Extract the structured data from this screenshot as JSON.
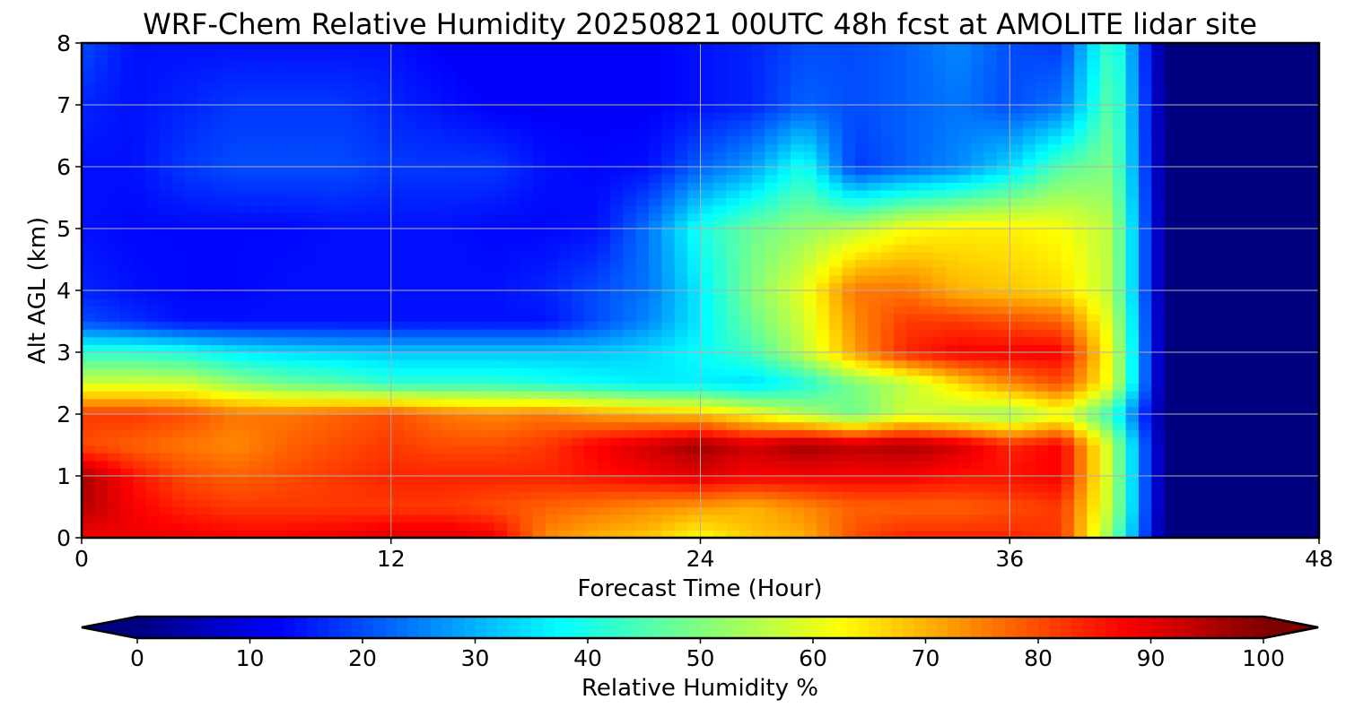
{
  "chart_data": {
    "type": "heatmap",
    "title": "WRF-Chem Relative Humidity 20250821 00UTC 48h fcst at AMOLITE lidar site",
    "xlabel": "Forecast Time (Hour)",
    "ylabel": "Alt AGL (km)",
    "xlim": [
      0,
      48
    ],
    "ylim": [
      0,
      8
    ],
    "xticks": [
      0,
      12,
      24,
      36,
      48
    ],
    "yticks": [
      0,
      1,
      2,
      3,
      4,
      5,
      6,
      7,
      8
    ],
    "grid": true,
    "colorbar": {
      "label": "Relative Humidity %",
      "ticks": [
        0,
        10,
        20,
        30,
        40,
        50,
        60,
        70,
        80,
        90,
        100
      ],
      "range": [
        0,
        100
      ],
      "colormap": "jet",
      "extend": "both",
      "orientation": "horizontal",
      "placement": "bottom"
    },
    "x": [
      0,
      2,
      4,
      6,
      8,
      10,
      12,
      14,
      16,
      18,
      20,
      22,
      24,
      26,
      28,
      30,
      32,
      34,
      36,
      38,
      40,
      42,
      44,
      46,
      48
    ],
    "y": [
      0,
      0.5,
      1,
      1.5,
      2,
      2.5,
      3,
      3.5,
      4,
      5,
      6,
      7,
      8
    ],
    "values": [
      [
        88,
        89,
        89,
        88,
        88,
        89,
        91,
        91,
        89,
        74,
        70,
        68,
        62,
        68,
        70,
        80,
        84,
        84,
        84,
        82,
        50,
        0,
        0,
        0,
        0
      ],
      [
        95,
        88,
        84,
        82,
        82,
        82,
        82,
        82,
        80,
        78,
        76,
        74,
        72,
        70,
        74,
        78,
        78,
        78,
        80,
        82,
        55,
        0,
        0,
        0,
        0
      ],
      [
        96,
        86,
        80,
        78,
        80,
        82,
        84,
        84,
        84,
        84,
        86,
        88,
        90,
        88,
        88,
        88,
        88,
        86,
        86,
        88,
        55,
        0,
        0,
        0,
        0
      ],
      [
        80,
        78,
        76,
        74,
        78,
        80,
        82,
        80,
        80,
        82,
        88,
        92,
        97,
        92,
        97,
        94,
        96,
        92,
        84,
        88,
        55,
        0,
        0,
        0,
        0
      ],
      [
        82,
        82,
        80,
        76,
        76,
        78,
        80,
        76,
        74,
        76,
        72,
        70,
        68,
        62,
        55,
        48,
        58,
        55,
        52,
        60,
        42,
        0,
        0,
        0,
        0
      ],
      [
        58,
        58,
        58,
        52,
        48,
        46,
        42,
        42,
        42,
        40,
        38,
        36,
        36,
        34,
        40,
        50,
        56,
        66,
        74,
        80,
        60,
        0,
        0,
        0,
        0
      ],
      [
        42,
        42,
        40,
        36,
        34,
        33,
        32,
        32,
        32,
        32,
        32,
        34,
        38,
        44,
        56,
        72,
        84,
        88,
        88,
        88,
        60,
        0,
        0,
        0,
        0
      ],
      [
        20,
        17,
        14,
        14,
        14,
        14,
        14,
        14,
        14,
        14,
        20,
        26,
        36,
        48,
        58,
        74,
        82,
        82,
        80,
        78,
        58,
        0,
        0,
        0,
        0
      ],
      [
        16,
        14,
        13,
        13,
        14,
        14,
        14,
        14,
        14,
        16,
        20,
        24,
        36,
        50,
        60,
        76,
        76,
        70,
        68,
        66,
        55,
        0,
        0,
        0,
        0
      ],
      [
        14,
        13,
        13,
        13,
        13,
        14,
        14,
        14,
        13,
        13,
        14,
        24,
        40,
        48,
        52,
        56,
        62,
        64,
        64,
        62,
        55,
        0,
        0,
        0,
        0
      ],
      [
        14,
        14,
        18,
        20,
        20,
        20,
        18,
        18,
        18,
        14,
        13,
        14,
        22,
        28,
        40,
        18,
        22,
        26,
        34,
        46,
        50,
        0,
        0,
        0,
        0
      ],
      [
        16,
        14,
        16,
        18,
        18,
        18,
        16,
        14,
        12,
        12,
        12,
        12,
        14,
        16,
        22,
        20,
        22,
        24,
        20,
        24,
        48,
        0,
        0,
        0,
        0
      ],
      [
        20,
        14,
        14,
        14,
        14,
        14,
        14,
        12,
        12,
        12,
        12,
        12,
        14,
        16,
        20,
        20,
        22,
        26,
        20,
        18,
        45,
        0,
        0,
        0,
        0
      ]
    ]
  }
}
